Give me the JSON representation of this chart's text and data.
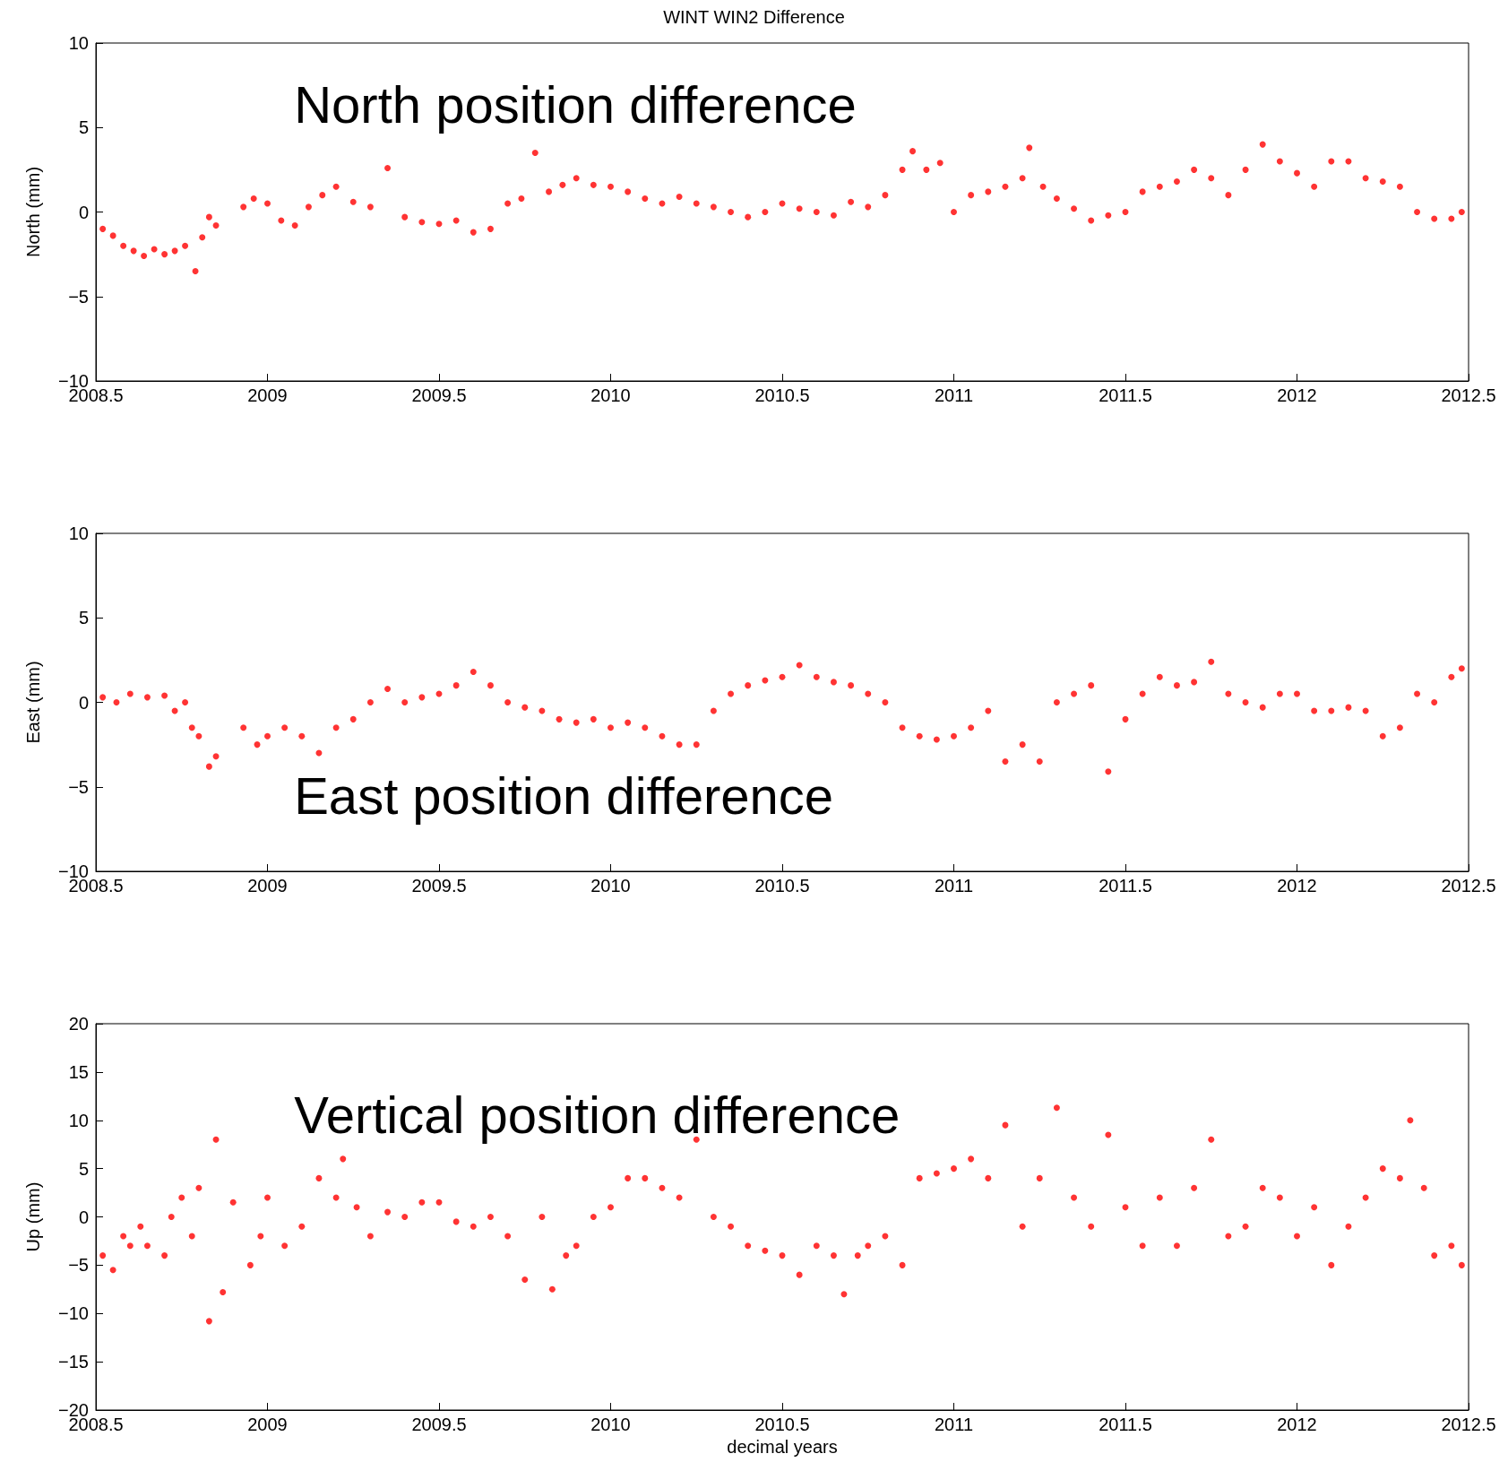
{
  "chart_data": [
    {
      "type": "scatter",
      "title": "WINT WIN2 Difference",
      "ylabel": "North (mm)",
      "annotations": [
        "North position difference"
      ],
      "marker": "circle",
      "grid": false,
      "xlim": [
        2008.5,
        2012.5
      ],
      "xticks": [
        2008.5,
        2009,
        2009.5,
        2010,
        2010.5,
        2011,
        2011.5,
        2012,
        2012.5
      ],
      "ylim": [
        -10,
        10
      ],
      "yticks": [
        -10,
        -5,
        0,
        5,
        10
      ],
      "series": [
        {
          "color": "#ff0000",
          "x": [
            2008.52,
            2008.55,
            2008.58,
            2008.61,
            2008.64,
            2008.67,
            2008.7,
            2008.73,
            2008.76,
            2008.79,
            2008.81,
            2008.83,
            2008.85,
            2008.93,
            2008.96,
            2009,
            2009.04,
            2009.08,
            2009.12,
            2009.16,
            2009.2,
            2009.25,
            2009.3,
            2009.35,
            2009.4,
            2009.45,
            2009.5,
            2009.55,
            2009.6,
            2009.65,
            2009.7,
            2009.74,
            2009.78,
            2009.82,
            2009.86,
            2009.9,
            2009.95,
            2010,
            2010.05,
            2010.1,
            2010.15,
            2010.2,
            2010.25,
            2010.3,
            2010.35,
            2010.4,
            2010.45,
            2010.5,
            2010.55,
            2010.6,
            2010.65,
            2010.7,
            2010.75,
            2010.8,
            2010.85,
            2010.88,
            2010.92,
            2010.96,
            2011,
            2011.05,
            2011.1,
            2011.15,
            2011.2,
            2011.22,
            2011.26,
            2011.3,
            2011.35,
            2011.4,
            2011.45,
            2011.5,
            2011.55,
            2011.6,
            2011.65,
            2011.7,
            2011.75,
            2011.8,
            2011.85,
            2011.9,
            2011.95,
            2012,
            2012.05,
            2012.1,
            2012.15,
            2012.2,
            2012.25,
            2012.3,
            2012.35,
            2012.4,
            2012.45,
            2012.48
          ],
          "values": [
            -1.0,
            -1.4,
            -2.0,
            -2.3,
            -2.6,
            -2.2,
            -2.5,
            -2.3,
            -2.0,
            -3.5,
            -1.5,
            -0.3,
            -0.8,
            0.3,
            0.8,
            0.5,
            -0.5,
            -0.8,
            0.3,
            1.0,
            1.5,
            0.6,
            0.3,
            2.6,
            -0.3,
            -0.6,
            -0.7,
            -0.5,
            -1.2,
            -1.0,
            0.5,
            0.8,
            3.5,
            1.2,
            1.6,
            2.0,
            1.6,
            1.5,
            1.2,
            0.8,
            0.5,
            0.9,
            0.5,
            0.3,
            0.0,
            -0.3,
            0.0,
            0.5,
            0.2,
            0.0,
            -0.2,
            0.6,
            0.3,
            1.0,
            2.5,
            3.6,
            2.5,
            2.9,
            0.0,
            1.0,
            1.2,
            1.5,
            2.0,
            3.8,
            1.5,
            0.8,
            0.2,
            -0.5,
            -0.2,
            0.0,
            1.2,
            1.5,
            1.8,
            2.5,
            2.0,
            1.0,
            2.5,
            4.0,
            3.0,
            2.3,
            1.5,
            3.0,
            3.0,
            2.0,
            1.8,
            1.5,
            0.0,
            -0.4,
            -0.4,
            0.0
          ]
        }
      ]
    },
    {
      "type": "scatter",
      "ylabel": "East (mm)",
      "annotations": [
        "East position difference"
      ],
      "marker": "circle",
      "grid": false,
      "xlim": [
        2008.5,
        2012.5
      ],
      "xticks": [
        2008.5,
        2009,
        2009.5,
        2010,
        2010.5,
        2011,
        2011.5,
        2012,
        2012.5
      ],
      "ylim": [
        -10,
        10
      ],
      "yticks": [
        -10,
        -5,
        0,
        5,
        10
      ],
      "series": [
        {
          "color": "#ff0000",
          "x": [
            2008.52,
            2008.56,
            2008.6,
            2008.65,
            2008.7,
            2008.73,
            2008.76,
            2008.78,
            2008.8,
            2008.83,
            2008.85,
            2008.93,
            2008.97,
            2009,
            2009.05,
            2009.1,
            2009.15,
            2009.2,
            2009.25,
            2009.3,
            2009.35,
            2009.4,
            2009.45,
            2009.5,
            2009.55,
            2009.6,
            2009.65,
            2009.7,
            2009.75,
            2009.8,
            2009.85,
            2009.9,
            2009.95,
            2010,
            2010.05,
            2010.1,
            2010.15,
            2010.2,
            2010.25,
            2010.3,
            2010.35,
            2010.4,
            2010.45,
            2010.5,
            2010.55,
            2010.6,
            2010.65,
            2010.7,
            2010.75,
            2010.8,
            2010.85,
            2010.9,
            2010.95,
            2011,
            2011.05,
            2011.1,
            2011.15,
            2011.2,
            2011.25,
            2011.3,
            2011.35,
            2011.4,
            2011.45,
            2011.5,
            2011.55,
            2011.6,
            2011.65,
            2011.7,
            2011.75,
            2011.8,
            2011.85,
            2011.9,
            2011.95,
            2012,
            2012.05,
            2012.1,
            2012.15,
            2012.2,
            2012.25,
            2012.3,
            2012.35,
            2012.4,
            2012.45,
            2012.48
          ],
          "values": [
            0.3,
            0.0,
            0.5,
            0.3,
            0.4,
            -0.5,
            0.0,
            -1.5,
            -2.0,
            -3.8,
            -3.2,
            -1.5,
            -2.5,
            -2.0,
            -1.5,
            -2.0,
            -3.0,
            -1.5,
            -1.0,
            0.0,
            0.8,
            0.0,
            0.3,
            0.5,
            1.0,
            1.8,
            1.0,
            0.0,
            -0.3,
            -0.5,
            -1.0,
            -1.2,
            -1.0,
            -1.5,
            -1.2,
            -1.5,
            -2.0,
            -2.5,
            -2.5,
            -0.5,
            0.5,
            1.0,
            1.3,
            1.5,
            2.2,
            1.5,
            1.2,
            1.0,
            0.5,
            0.0,
            -1.5,
            -2.0,
            -2.2,
            -2.0,
            -1.5,
            -0.5,
            -3.5,
            -2.5,
            -3.5,
            0.0,
            0.5,
            1.0,
            -4.1,
            -1.0,
            0.5,
            1.5,
            1.0,
            1.2,
            2.4,
            0.5,
            0.0,
            -0.3,
            0.5,
            0.5,
            -0.5,
            -0.5,
            -0.3,
            -0.5,
            -2.0,
            -1.5,
            0.5,
            0.0,
            1.5,
            2.0
          ]
        }
      ]
    },
    {
      "type": "scatter",
      "ylabel": "Up (mm)",
      "xlabel": "decimal years",
      "annotations": [
        "Vertical position difference"
      ],
      "marker": "circle",
      "grid": false,
      "xlim": [
        2008.5,
        2012.5
      ],
      "xticks": [
        2008.5,
        2009,
        2009.5,
        2010,
        2010.5,
        2011,
        2011.5,
        2012,
        2012.5
      ],
      "ylim": [
        -20,
        20
      ],
      "yticks": [
        -20,
        -15,
        -10,
        -5,
        0,
        5,
        10,
        15,
        20
      ],
      "series": [
        {
          "color": "#ff0000",
          "x": [
            2008.52,
            2008.55,
            2008.58,
            2008.6,
            2008.63,
            2008.65,
            2008.7,
            2008.72,
            2008.75,
            2008.78,
            2008.8,
            2008.83,
            2008.85,
            2008.87,
            2008.9,
            2008.95,
            2008.98,
            2009,
            2009.05,
            2009.1,
            2009.15,
            2009.2,
            2009.22,
            2009.26,
            2009.3,
            2009.35,
            2009.4,
            2009.45,
            2009.5,
            2009.55,
            2009.6,
            2009.65,
            2009.7,
            2009.75,
            2009.8,
            2009.83,
            2009.87,
            2009.9,
            2009.95,
            2010,
            2010.05,
            2010.1,
            2010.15,
            2010.2,
            2010.25,
            2010.3,
            2010.35,
            2010.4,
            2010.45,
            2010.5,
            2010.55,
            2010.6,
            2010.65,
            2010.68,
            2010.72,
            2010.75,
            2010.8,
            2010.85,
            2010.9,
            2010.95,
            2011,
            2011.05,
            2011.1,
            2011.15,
            2011.2,
            2011.25,
            2011.3,
            2011.35,
            2011.4,
            2011.45,
            2011.5,
            2011.55,
            2011.6,
            2011.65,
            2011.7,
            2011.75,
            2011.8,
            2011.85,
            2011.9,
            2011.95,
            2012,
            2012.05,
            2012.1,
            2012.15,
            2012.2,
            2012.25,
            2012.3,
            2012.33,
            2012.37,
            2012.4,
            2012.45,
            2012.48
          ],
          "values": [
            -4.0,
            -5.5,
            -2.0,
            -3.0,
            -1.0,
            -3.0,
            -4.0,
            0.0,
            2.0,
            -2.0,
            3.0,
            -10.8,
            8.0,
            -7.8,
            1.5,
            -5.0,
            -2.0,
            2.0,
            -3.0,
            -1.0,
            4.0,
            2.0,
            6.0,
            1.0,
            -2.0,
            0.5,
            0.0,
            1.5,
            1.5,
            -0.5,
            -1.0,
            0.0,
            -2.0,
            -6.5,
            0.0,
            -7.5,
            -4.0,
            -3.0,
            0.0,
            1.0,
            4.0,
            4.0,
            3.0,
            2.0,
            8.0,
            0.0,
            -1.0,
            -3.0,
            -3.5,
            -4.0,
            -6.0,
            -3.0,
            -4.0,
            -8.0,
            -4.0,
            -3.0,
            -2.0,
            -5.0,
            4.0,
            4.5,
            5.0,
            6.0,
            4.0,
            9.5,
            -1.0,
            4.0,
            11.3,
            2.0,
            -1.0,
            8.5,
            1.0,
            -3.0,
            2.0,
            -3.0,
            3.0,
            8.0,
            -2.0,
            -1.0,
            3.0,
            2.0,
            -2.0,
            1.0,
            -5.0,
            -1.0,
            2.0,
            5.0,
            4.0,
            10.0,
            3.0,
            -4.0,
            -3.0,
            -5.0
          ]
        }
      ]
    }
  ]
}
